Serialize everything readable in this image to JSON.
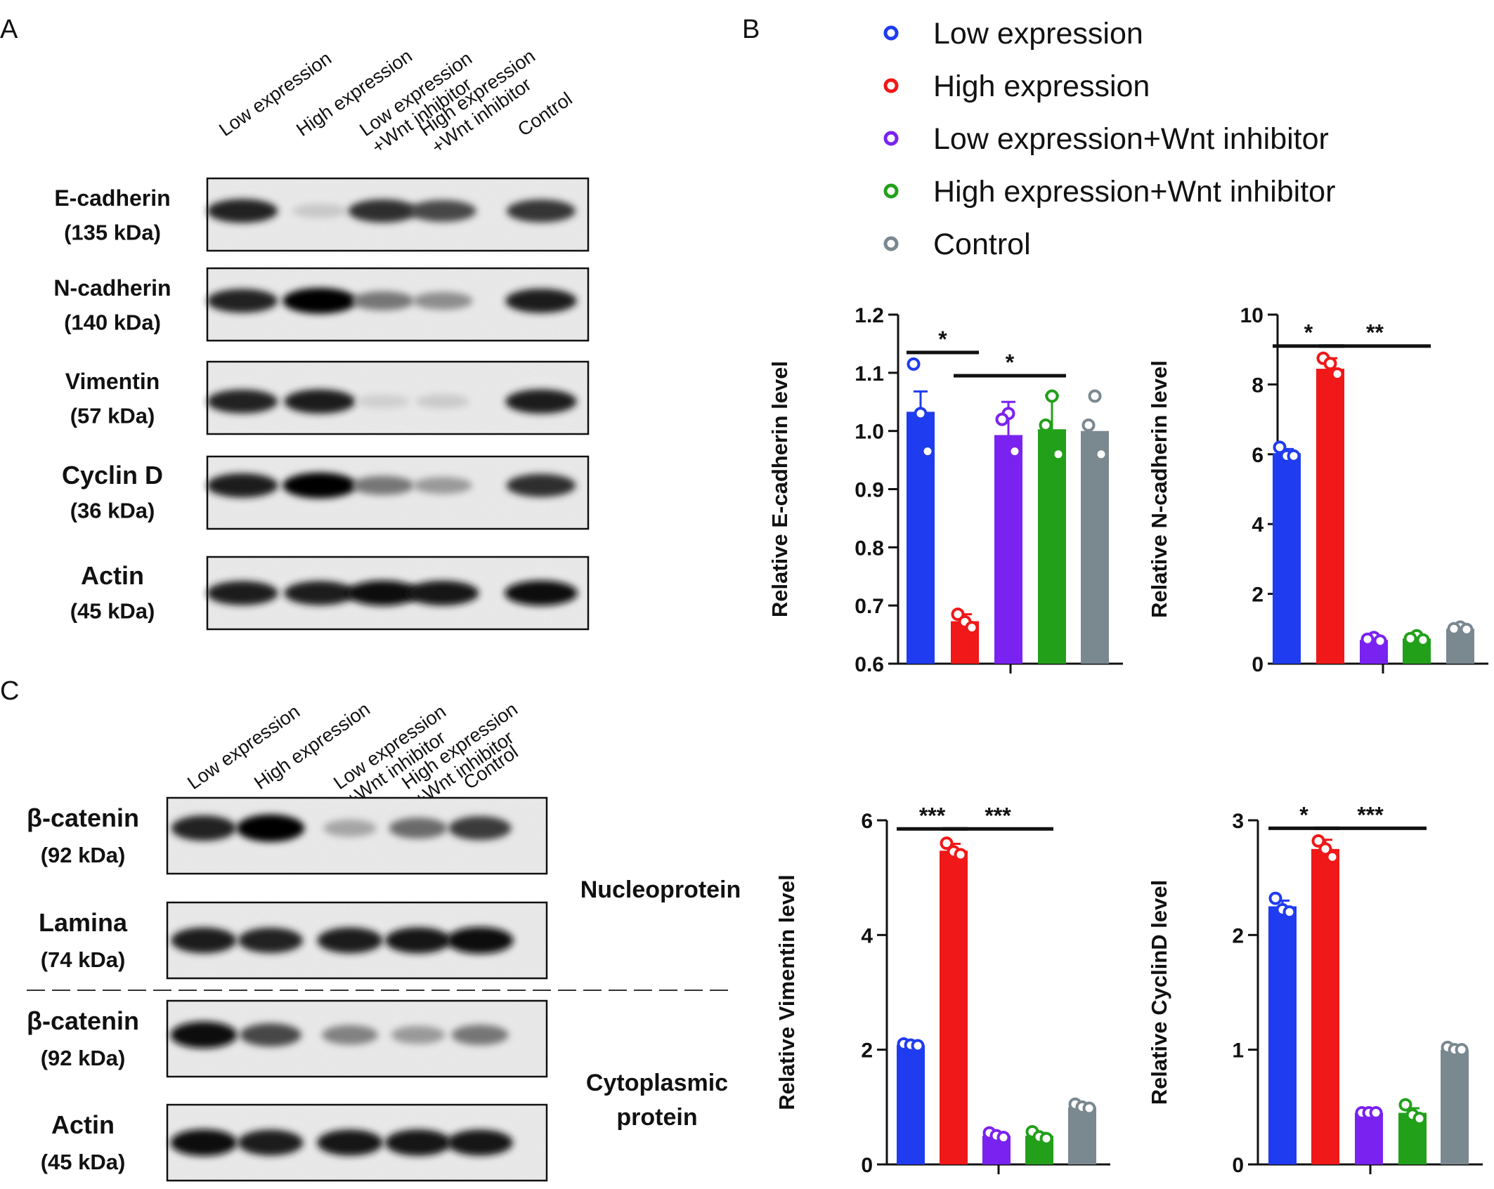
{
  "panel_letters": {
    "a": "A",
    "b": "B",
    "c": "C"
  },
  "lanes": [
    "Low expression",
    "High expression",
    "Low expression\n+Wnt inhibitor",
    "High expression\n+Wnt inhibitor",
    "Control"
  ],
  "blot_a": [
    {
      "protein": "E-cadherin",
      "kda": "(135  kDa)",
      "intensity": [
        0.85,
        0.15,
        0.8,
        0.7,
        0.78
      ]
    },
    {
      "protein": "N-cadherin",
      "kda": "(140  kDa)",
      "intensity": [
        0.85,
        1.0,
        0.5,
        0.4,
        0.88
      ]
    },
    {
      "protein": "Vimentin",
      "kda": "(57  kDa)",
      "intensity": [
        0.85,
        0.88,
        0.12,
        0.14,
        0.88
      ]
    },
    {
      "protein": "Cyclin D",
      "kda": "(36  kDa)",
      "intensity": [
        0.88,
        1.0,
        0.5,
        0.35,
        0.8
      ]
    },
    {
      "protein": "Actin",
      "kda": "(45  kDa)",
      "intensity": [
        0.88,
        0.88,
        0.95,
        0.92,
        0.95
      ]
    }
  ],
  "blot_c": [
    {
      "protein": "β-catenin",
      "kda": "(92  kDa)",
      "intensity": [
        0.85,
        1.0,
        0.3,
        0.55,
        0.75
      ]
    },
    {
      "protein": "Lamina",
      "kda": "(74  kDa)",
      "intensity": [
        0.88,
        0.85,
        0.88,
        0.9,
        0.95
      ]
    },
    {
      "protein": "β-catenin",
      "kda": "(92  kDa)",
      "intensity": [
        0.95,
        0.7,
        0.45,
        0.35,
        0.5
      ]
    },
    {
      "protein": "Actin",
      "kda": "(45  kDa)",
      "intensity": [
        0.95,
        0.88,
        0.9,
        0.92,
        0.9
      ]
    }
  ],
  "fraction_labels": {
    "nucleo": "Nucleoprotein",
    "cyto": [
      "Cytoplasmic",
      "protein"
    ]
  },
  "legend": [
    {
      "label": "Low expression",
      "color": "#1f3cf0"
    },
    {
      "label": "High expression",
      "color": "#f01818"
    },
    {
      "label": "Low expression+Wnt inhibitor",
      "color": "#7a22f0"
    },
    {
      "label": "High expression+Wnt inhibitor",
      "color": "#22a01a"
    },
    {
      "label": "Control",
      "color": "#7a8890"
    }
  ],
  "chart_data": [
    {
      "type": "bar",
      "ylabel": "Relative E-cadherin level",
      "categories": [
        "Low expression",
        "High expression",
        "Low expression+Wnt inhibitor",
        "High expression+Wnt inhibitor",
        "Control"
      ],
      "values": [
        1.033,
        0.673,
        0.993,
        1.003,
        1.0
      ],
      "errors": [
        0.035,
        0.012,
        0.057,
        0.058,
        0.0
      ],
      "points": [
        [
          1.115,
          1.03,
          0.965
        ],
        [
          0.685,
          0.672,
          0.662
        ],
        [
          1.03,
          1.02,
          0.965
        ],
        [
          1.06,
          1.01,
          0.96
        ],
        [
          1.06,
          1.01,
          0.96
        ]
      ],
      "ylim": [
        0.6,
        1.2
      ],
      "yticks": [
        "0.6",
        "0.7",
        "0.8",
        "0.9",
        "1.0",
        "1.1",
        "1.2"
      ],
      "significance": [
        {
          "from": 0,
          "to": 1,
          "y": 1.135,
          "label": "*"
        },
        {
          "from": 1,
          "to": 3,
          "y": 1.095,
          "label": "*"
        }
      ]
    },
    {
      "type": "bar",
      "ylabel": "Relative N-cadherin level",
      "categories": [
        "Low expression",
        "High expression",
        "Low expression+Wnt inhibitor",
        "High expression+Wnt inhibitor",
        "Control"
      ],
      "values": [
        6.03,
        8.45,
        0.68,
        0.72,
        1.0
      ],
      "errors": [
        0.12,
        0.3,
        0.05,
        0.05,
        0.05
      ],
      "points": [
        [
          6.2,
          5.95,
          5.95
        ],
        [
          8.75,
          8.6,
          8.3
        ],
        [
          0.75,
          0.7,
          0.65
        ],
        [
          0.8,
          0.72,
          0.68
        ],
        [
          1.05,
          1.0,
          0.98
        ]
      ],
      "ylim": [
        0,
        10
      ],
      "yticks": [
        "0",
        "2",
        "4",
        "6",
        "8",
        "10"
      ],
      "significance": [
        {
          "from": 0,
          "to": 1,
          "y": 9.1,
          "label": "*"
        },
        {
          "from": 1,
          "to": 3,
          "y": 9.1,
          "label": "**"
        }
      ]
    },
    {
      "type": "bar",
      "ylabel": "Relative Vimentin level",
      "categories": [
        "Low expression",
        "High expression",
        "Low expression+Wnt inhibitor",
        "High expression+Wnt inhibitor",
        "Control"
      ],
      "values": [
        2.08,
        5.47,
        0.5,
        0.5,
        1.0
      ],
      "errors": [
        0.03,
        0.12,
        0.03,
        0.05,
        0.04
      ],
      "points": [
        [
          2.1,
          2.08,
          2.07
        ],
        [
          5.6,
          5.45,
          5.4
        ],
        [
          0.55,
          0.5,
          0.47
        ],
        [
          0.57,
          0.48,
          0.45
        ],
        [
          1.05,
          1.0,
          0.98
        ]
      ],
      "ylim": [
        0,
        6
      ],
      "yticks": [
        "0",
        "2",
        "4",
        "6"
      ],
      "significance": [
        {
          "from": 0,
          "to": 1,
          "y": 5.85,
          "label": "***"
        },
        {
          "from": 1,
          "to": 3,
          "y": 5.85,
          "label": "***"
        }
      ]
    },
    {
      "type": "bar",
      "ylabel": "Relative CyclinD level",
      "categories": [
        "Low expression",
        "High expression",
        "Low expression+Wnt inhibitor",
        "High expression+Wnt inhibitor",
        "Control"
      ],
      "values": [
        2.25,
        2.75,
        0.45,
        0.45,
        1.0
      ],
      "errors": [
        0.05,
        0.08,
        0.02,
        0.04,
        0.02
      ],
      "points": [
        [
          2.32,
          2.22,
          2.2
        ],
        [
          2.82,
          2.75,
          2.68
        ],
        [
          0.45,
          0.45,
          0.45
        ],
        [
          0.52,
          0.43,
          0.4
        ],
        [
          1.02,
          1.0,
          1.0
        ]
      ],
      "ylim": [
        0,
        3
      ],
      "yticks": [
        "0",
        "1",
        "2",
        "3"
      ],
      "significance": [
        {
          "from": 0,
          "to": 1,
          "y": 2.93,
          "label": "*"
        },
        {
          "from": 1,
          "to": 3,
          "y": 2.93,
          "label": "***"
        }
      ]
    }
  ]
}
